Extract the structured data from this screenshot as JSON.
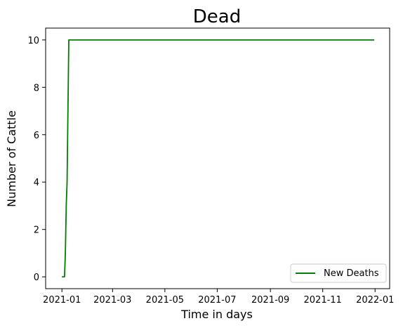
{
  "chart_data": {
    "type": "line",
    "title": "Dead",
    "xlabel": "Time in days",
    "ylabel": "Number of Cattle",
    "x_tick_labels": [
      "2021-01",
      "2021-03",
      "2021-05",
      "2021-07",
      "2021-09",
      "2021-11",
      "2022-01"
    ],
    "x_tick_dates": [
      "2021-01-01",
      "2021-03-01",
      "2021-05-01",
      "2021-07-01",
      "2021-09-01",
      "2021-11-01",
      "2022-01-01"
    ],
    "y_tick_labels": [
      "0",
      "2",
      "4",
      "6",
      "8",
      "10"
    ],
    "xlim": [
      "2020-12-13",
      "2022-01-18"
    ],
    "ylim": [
      -0.5,
      10.5
    ],
    "grid": false,
    "legend": "lower-right",
    "series": [
      {
        "name": "New Deaths",
        "color": "#008000",
        "x": [
          "2021-01-01",
          "2021-01-02",
          "2021-01-03",
          "2021-01-04",
          "2021-01-05",
          "2021-01-06",
          "2021-01-07",
          "2021-01-08",
          "2021-01-09",
          "2021-01-10",
          "2021-01-11",
          "2021-12-31"
        ],
        "y": [
          0,
          0,
          0,
          0,
          1,
          3,
          4,
          7,
          10,
          10,
          10,
          10
        ]
      }
    ]
  }
}
